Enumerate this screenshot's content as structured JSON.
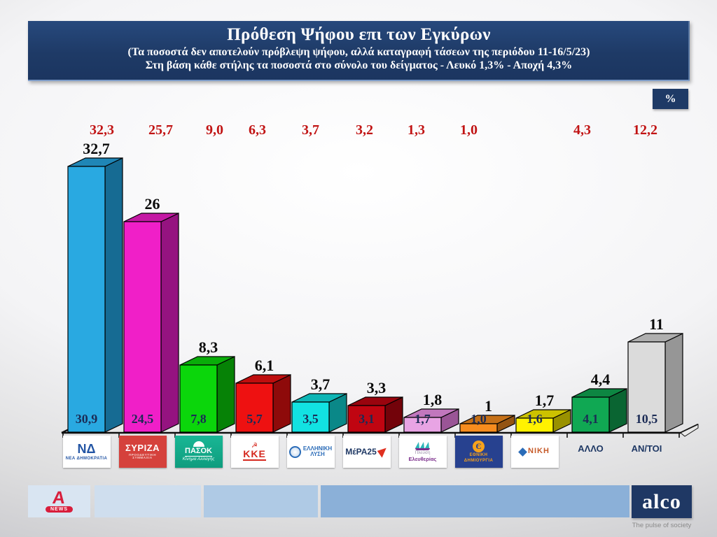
{
  "slide": {
    "title": "Πρόθεση Ψήφου επι των Εγκύρων",
    "subtitle1": "(Τα ποσοστά δεν αποτελούν πρόβλεψη ψήφου, αλλά καταγραφή τάσεων της περιόδου  11-16/5/23)",
    "subtitle2": "Στη βάση κάθε στήλης τα ποσοστά στο σύνολο του δείγματος - Λευκό 1,3% - Αποχή 4,3%",
    "unit_badge": "%"
  },
  "chart_data": {
    "type": "bar",
    "title": "Πρόθεση Ψήφου επι των Εγκύρων",
    "ylabel": "%",
    "ylim": [
      0,
      35
    ],
    "legend": "none",
    "categories": [
      "ΝΕΑ ΔΗΜΟΚΡΑΤΙΑ",
      "ΣΥΡΙΖΑ",
      "ΠΑΣΟΚ",
      "ΚΚΕ",
      "ΕΛΛΗΝΙΚΗ ΛΥΣΗ",
      "ΜέΡΑ25",
      "ΠΛΕΥΣΗ ΕΛΕΥΘΕΡΙΑΣ",
      "ΕΘΝΙΚΗ ΔΗΜΙΟΥΡΓΙΑ",
      "ΝΙΚΗ",
      "ΑΛΛΟ",
      "ΑΝ/ΤΟΙ"
    ],
    "series": [
      {
        "name": "τιμή πάνω από τη στήλη",
        "values": [
          32.7,
          26,
          8.3,
          6.1,
          3.7,
          3.3,
          1.8,
          1,
          1.7,
          4.4,
          11
        ]
      },
      {
        "name": "τιμή μέσα στη στήλη (στο σύνολο του δείγματος)",
        "values": [
          30.9,
          24.5,
          7.8,
          5.7,
          3.5,
          3.1,
          1.7,
          1.0,
          1.6,
          4.1,
          10.5
        ]
      },
      {
        "name": "κόκκινη σειρά τιμών (πάνω γραμμή)",
        "values": [
          32.3,
          25.7,
          9.0,
          6.3,
          3.7,
          3.2,
          1.3,
          1.0,
          null,
          4.3,
          12.2
        ]
      }
    ],
    "parties": [
      {
        "id": "nd",
        "category": "ΝΕΑ ΔΗΜΟΚΡΑΤΙΑ",
        "top_label": "32,7",
        "inner_label": "30,9",
        "red_label": "32,3",
        "sample": 30.9,
        "front": "#29A9E1",
        "top": "#1F86B6",
        "side": "#166B93",
        "logo": {
          "kind": "nd",
          "main": "ΝΔ",
          "sub": "ΝΕΑ ΔΗΜΟΚΡΑΤΙΑ"
        }
      },
      {
        "id": "syriza",
        "category": "ΣΥΡΙΖΑ",
        "top_label": "26",
        "inner_label": "24,5",
        "red_label": "25,7",
        "sample": 24.5,
        "front": "#F01FC8",
        "top": "#C419A4",
        "side": "#951380",
        "logo": {
          "kind": "syriza",
          "main": "ΣΥΡΙΖΑ",
          "sub": "ΠΡΟΟΔΕΥΤΙΚΗ ΣΥΜΜΑΧΙΑ"
        }
      },
      {
        "id": "pasok",
        "category": "ΠΑΣΟΚ",
        "top_label": "8,3",
        "inner_label": "7,8",
        "red_label": "9,0",
        "sample": 7.8,
        "front": "#0BD60B",
        "top": "#09AC09",
        "side": "#068206",
        "logo": {
          "kind": "pasok",
          "main": "ΠΑΣΟΚ",
          "sub": "Κίνημα Αλλαγής"
        }
      },
      {
        "id": "kke",
        "category": "ΚΚΕ",
        "top_label": "6,1",
        "inner_label": "5,7",
        "red_label": "6,3",
        "sample": 5.7,
        "front": "#EE1111",
        "top": "#BE0E0E",
        "side": "#8E0A0A",
        "logo": {
          "kind": "kke",
          "main": "ΚΚΕ",
          "icon_char": "☭"
        }
      },
      {
        "id": "el",
        "category": "ΕΛΛΗΝΙΚΗ ΛΥΣΗ",
        "top_label": "3,7",
        "inner_label": "3,5",
        "red_label": "3,7",
        "sample": 3.5,
        "front": "#12E2E2",
        "top": "#0EB5B5",
        "side": "#0A8888",
        "logo": {
          "kind": "el",
          "main": "ΕΛΛΗΝΙΚΗ",
          "sub": "ΛΥΣΗ"
        }
      },
      {
        "id": "mera",
        "category": "ΜέΡΑ25",
        "top_label": "3,3",
        "inner_label": "3,1",
        "red_label": "3,2",
        "sample": 3.1,
        "front": "#C00511",
        "top": "#99040E",
        "side": "#73030A",
        "logo": {
          "kind": "mera",
          "main": "ΜέΡΑ25"
        }
      },
      {
        "id": "plefsi",
        "category": "ΠΛΕΥΣΗ ΕΛΕΥΘΕΡΙΑΣ",
        "top_label": "1,8",
        "inner_label": "1,7",
        "red_label": "1,3",
        "sample": 1.7,
        "front": "#E8A4E4",
        "top": "#C177BD",
        "side": "#9A5596",
        "logo": {
          "kind": "plefsi",
          "main": "Πλεύση",
          "sub": "Ελευθερίας"
        }
      },
      {
        "id": "ethniki",
        "category": "ΕΘΝΙΚΗ ΔΗΜΙΟΥΡΓΙΑ",
        "top_label": "1",
        "inner_label": "1,0",
        "red_label": "1,0",
        "sample": 1.0,
        "front": "#F78C1E",
        "top": "#C57018",
        "side": "#945412",
        "logo": {
          "kind": "ethniki",
          "main": "ΕΘΝΙΚΗ",
          "sub": "ΔΗΜΙΟΥΡΓΙΑ",
          "icon_char": "Є"
        }
      },
      {
        "id": "niki",
        "category": "ΝΙΚΗ",
        "top_label": "1,7",
        "inner_label": "1,6",
        "red_label": null,
        "sample": 1.6,
        "front": "#FFF200",
        "top": "#CCC200",
        "side": "#999100",
        "logo": {
          "kind": "niki",
          "main": "ΝΙΚΗ"
        }
      },
      {
        "id": "allo",
        "category": "ΑΛΛΟ",
        "top_label": "4,4",
        "inner_label": "4,1",
        "red_label": "4,3",
        "sample": 4.1,
        "front": "#10A853",
        "top": "#0D8642",
        "side": "#0A6532",
        "logo": {
          "kind": "text",
          "main": "ΑΛΛΟ"
        }
      },
      {
        "id": "antoi",
        "category": "ΑΝ/ΤΟΙ",
        "top_label": "11",
        "inner_label": "10,5",
        "red_label": "12,2",
        "sample": 10.5,
        "front": "#DBDBDB",
        "top": "#AFAFAF",
        "side": "#969696",
        "logo": {
          "kind": "text",
          "main": "ΑΝ/ΤΟΙ"
        }
      }
    ]
  },
  "footer": {
    "alpha_letter": "A",
    "alpha_news_label": "NEWS",
    "alco_name": "alco",
    "alco_tagline": "The pulse of society"
  }
}
